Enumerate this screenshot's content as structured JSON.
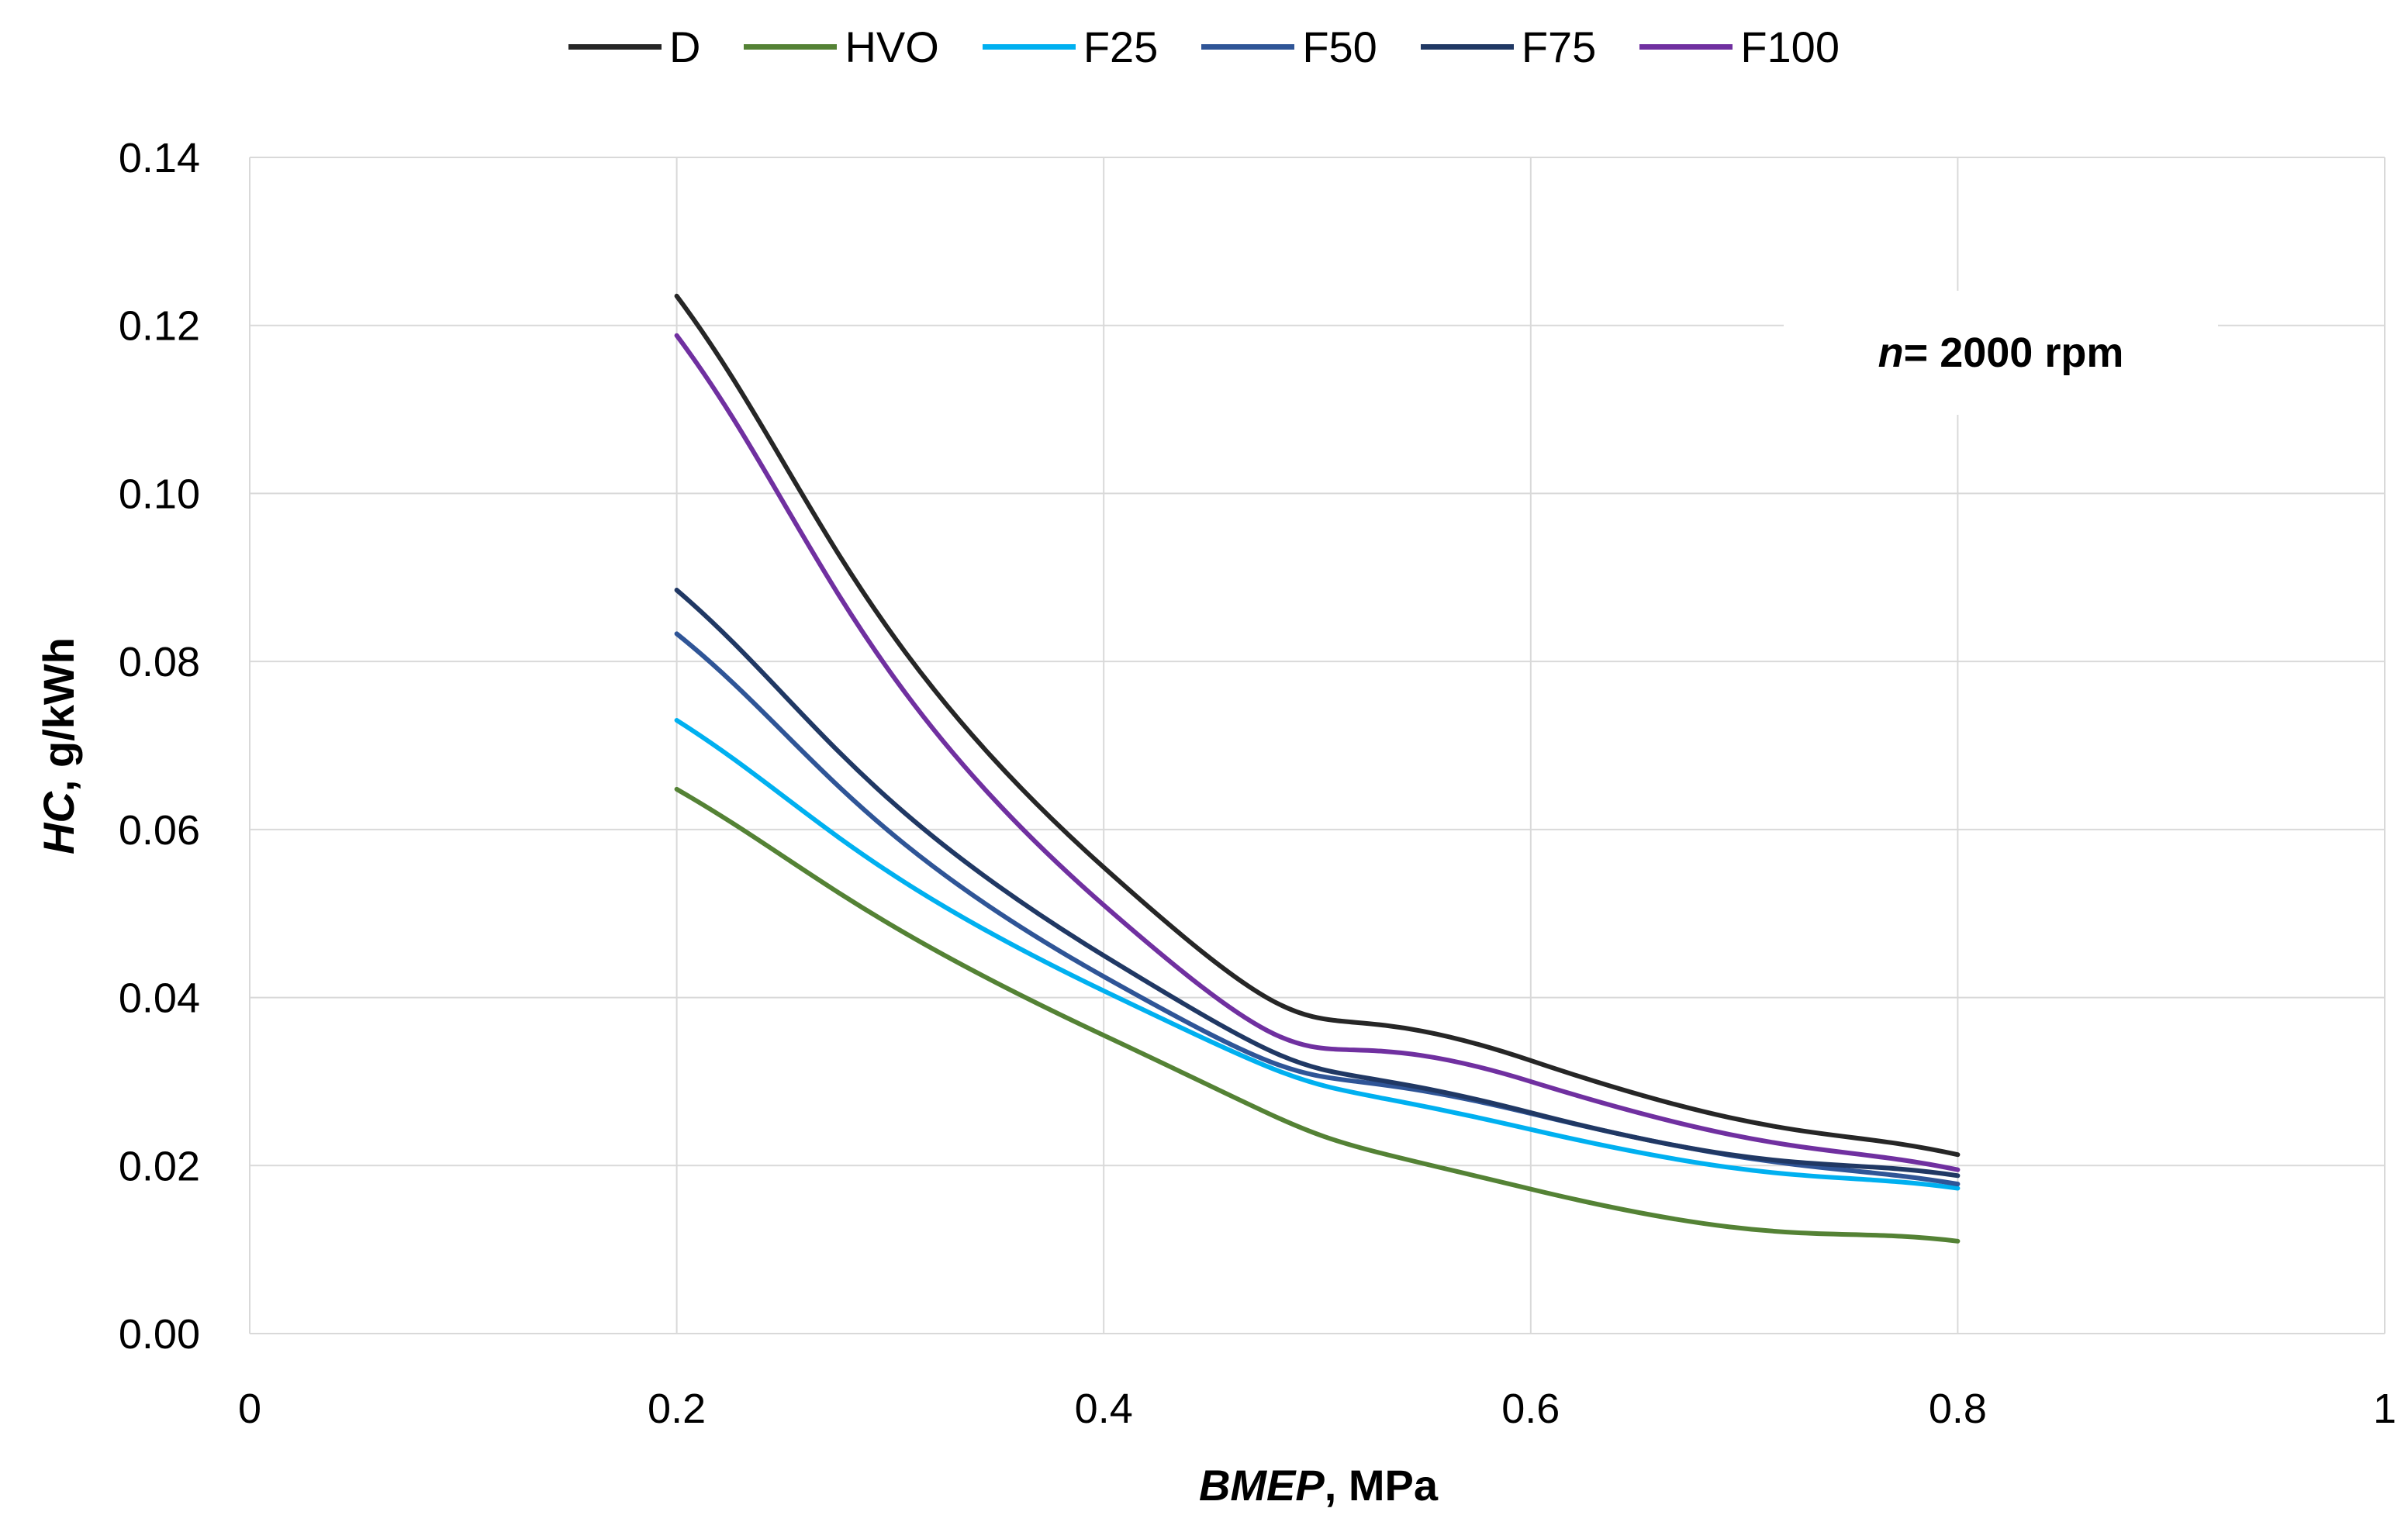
{
  "chart_data": {
    "type": "line",
    "title": "",
    "annotation": {
      "var": "n",
      "rest": " = 2000 rpm"
    },
    "xlabel": {
      "italic": "BMEP",
      "rest": ", MPa"
    },
    "ylabel": {
      "italic": "HC",
      "rest": ", g/kWh"
    },
    "xlim": [
      0,
      1
    ],
    "ylim": [
      0,
      0.14
    ],
    "x_ticks": [
      "0",
      "0.2",
      "0.4",
      "0.6",
      "0.8",
      "1"
    ],
    "x_tick_values": [
      0,
      0.2,
      0.4,
      0.6,
      0.8,
      1.0
    ],
    "y_ticks": [
      "0.00",
      "0.02",
      "0.04",
      "0.06",
      "0.08",
      "0.10",
      "0.12",
      "0.14"
    ],
    "y_tick_values": [
      0,
      0.02,
      0.04,
      0.06,
      0.08,
      0.1,
      0.12,
      0.14
    ],
    "grid": true,
    "legend_position": "top",
    "x": [
      0.2,
      0.4,
      0.6,
      0.8
    ],
    "series": [
      {
        "name": "D",
        "color": "#262626",
        "values": [
          0.1235,
          0.0555,
          0.0325,
          0.0213
        ]
      },
      {
        "name": "HVO",
        "color": "#548235",
        "values": [
          0.0648,
          0.0355,
          0.0172,
          0.011
        ]
      },
      {
        "name": "F25",
        "color": "#00B0F0",
        "values": [
          0.073,
          0.0408,
          0.0243,
          0.0173
        ]
      },
      {
        "name": "F50",
        "color": "#2F5597",
        "values": [
          0.0833,
          0.0425,
          0.0262,
          0.0178
        ]
      },
      {
        "name": "F75",
        "color": "#203864",
        "values": [
          0.0885,
          0.045,
          0.0263,
          0.0188
        ]
      },
      {
        "name": "F100",
        "color": "#7030A0",
        "values": [
          0.1188,
          0.051,
          0.03,
          0.0195
        ]
      }
    ]
  }
}
